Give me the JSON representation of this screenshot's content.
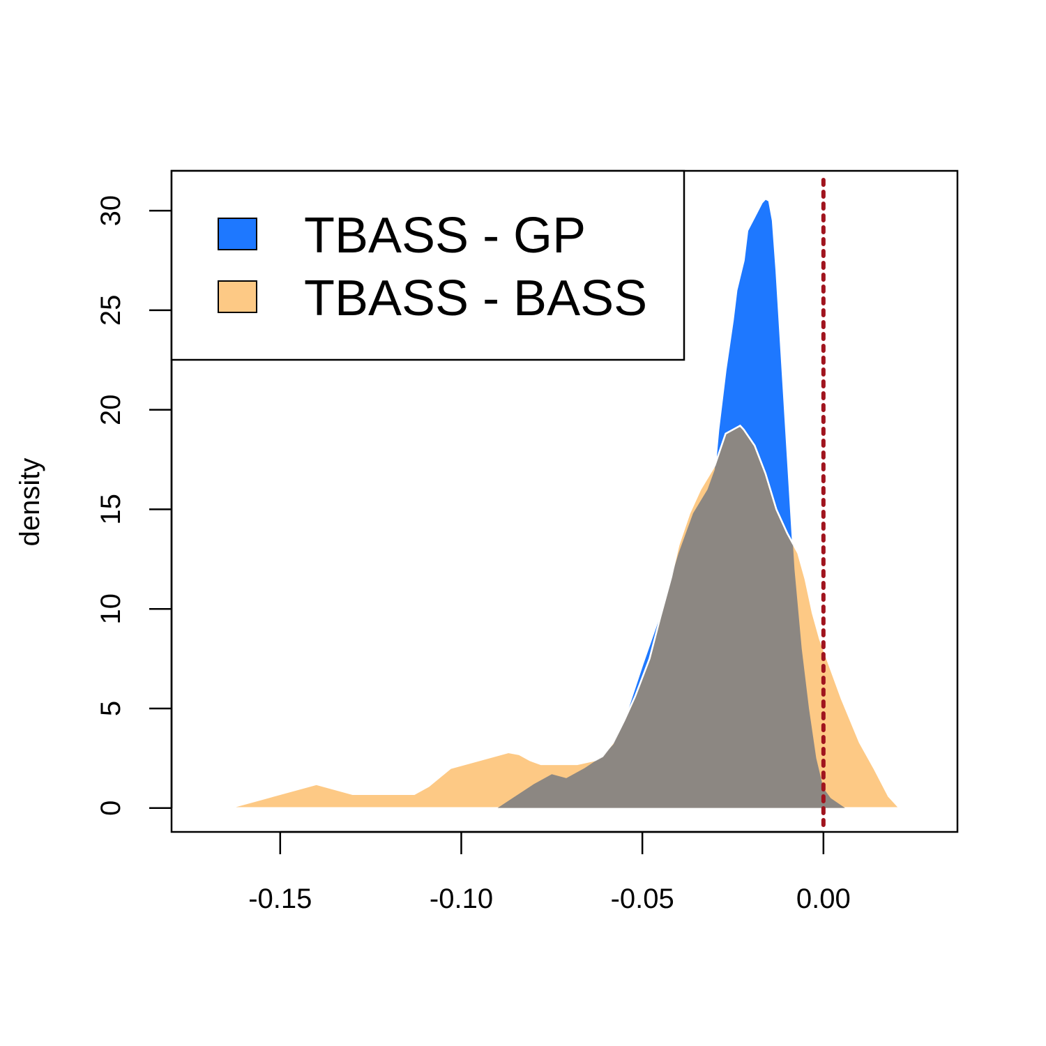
{
  "chart_data": {
    "type": "area",
    "title": "",
    "xlabel": "",
    "ylabel": "density",
    "xlim": [
      -0.18,
      0.037
    ],
    "ylim": [
      -1.2,
      32
    ],
    "x_ticks": [
      {
        "value": -0.15,
        "label": "-0.15"
      },
      {
        "value": -0.1,
        "label": "-0.10"
      },
      {
        "value": -0.05,
        "label": "-0.05"
      },
      {
        "value": 0.0,
        "label": "0.00"
      }
    ],
    "y_ticks": [
      {
        "value": 0,
        "label": "0"
      },
      {
        "value": 5,
        "label": "5"
      },
      {
        "value": 10,
        "label": "10"
      },
      {
        "value": 15,
        "label": "15"
      },
      {
        "value": 20,
        "label": "20"
      },
      {
        "value": 25,
        "label": "25"
      },
      {
        "value": 30,
        "label": "30"
      }
    ],
    "legend_position": "top-left",
    "reference_line": {
      "x": 0.0,
      "color": "#A0141E",
      "style": "dotted"
    },
    "series": [
      {
        "name": "TBASS - GP",
        "color": "#1E78FF",
        "points": [
          [
            -0.09,
            0.0
          ],
          [
            -0.085,
            0.6
          ],
          [
            -0.08,
            1.2
          ],
          [
            -0.075,
            1.7
          ],
          [
            -0.071,
            1.5
          ],
          [
            -0.066,
            2.0
          ],
          [
            -0.061,
            2.6
          ],
          [
            -0.058,
            3.2
          ],
          [
            -0.054,
            5.0
          ],
          [
            -0.05,
            7.2
          ],
          [
            -0.045,
            9.8
          ],
          [
            -0.04,
            12.8
          ],
          [
            -0.036,
            14.8
          ],
          [
            -0.032,
            16.0
          ],
          [
            -0.03,
            17.0
          ],
          [
            -0.029,
            19.0
          ],
          [
            -0.027,
            22.0
          ],
          [
            -0.025,
            24.5
          ],
          [
            -0.024,
            26.0
          ],
          [
            -0.022,
            27.5
          ],
          [
            -0.021,
            29.0
          ],
          [
            -0.019,
            29.7
          ],
          [
            -0.017,
            30.4
          ],
          [
            -0.016,
            30.6
          ],
          [
            -0.015,
            30.5
          ],
          [
            -0.014,
            29.5
          ],
          [
            -0.013,
            27.0
          ],
          [
            -0.012,
            24.0
          ],
          [
            -0.011,
            21.0
          ],
          [
            -0.01,
            18.0
          ],
          [
            -0.009,
            15.0
          ],
          [
            -0.008,
            12.0
          ],
          [
            -0.007,
            10.0
          ],
          [
            -0.006,
            8.0
          ],
          [
            -0.004,
            5.0
          ],
          [
            -0.002,
            2.5
          ],
          [
            0.0,
            1.0
          ],
          [
            0.002,
            0.5
          ],
          [
            0.006,
            0.0
          ]
        ]
      },
      {
        "name": "TBASS - BASS",
        "color": "#FDC985",
        "points": [
          [
            -0.164,
            0.0
          ],
          [
            -0.152,
            0.6
          ],
          [
            -0.14,
            1.2
          ],
          [
            -0.13,
            0.7
          ],
          [
            -0.12,
            0.7
          ],
          [
            -0.113,
            0.7
          ],
          [
            -0.109,
            1.1
          ],
          [
            -0.103,
            2.0
          ],
          [
            -0.095,
            2.4
          ],
          [
            -0.087,
            2.8
          ],
          [
            -0.084,
            2.7
          ],
          [
            -0.081,
            2.4
          ],
          [
            -0.078,
            2.2
          ],
          [
            -0.073,
            2.2
          ],
          [
            -0.068,
            2.2
          ],
          [
            -0.063,
            2.4
          ],
          [
            -0.061,
            2.6
          ],
          [
            -0.058,
            3.3
          ],
          [
            -0.055,
            4.4
          ],
          [
            -0.052,
            5.6
          ],
          [
            -0.048,
            7.5
          ],
          [
            -0.045,
            9.6
          ],
          [
            -0.042,
            11.6
          ],
          [
            -0.04,
            13.2
          ],
          [
            -0.037,
            14.8
          ],
          [
            -0.034,
            16.0
          ],
          [
            -0.03,
            17.2
          ],
          [
            -0.027,
            18.8
          ],
          [
            -0.025,
            19.0
          ],
          [
            -0.023,
            19.2
          ],
          [
            -0.022,
            19.0
          ],
          [
            -0.019,
            18.2
          ],
          [
            -0.016,
            16.8
          ],
          [
            -0.013,
            15.0
          ],
          [
            -0.01,
            13.8
          ],
          [
            -0.007,
            12.8
          ],
          [
            -0.005,
            11.5
          ],
          [
            -0.003,
            9.8
          ],
          [
            -0.001,
            8.5
          ],
          [
            0.002,
            7.0
          ],
          [
            0.005,
            5.5
          ],
          [
            0.01,
            3.3
          ],
          [
            0.014,
            2.0
          ],
          [
            0.018,
            0.6
          ],
          [
            0.021,
            0.0
          ]
        ]
      }
    ]
  }
}
